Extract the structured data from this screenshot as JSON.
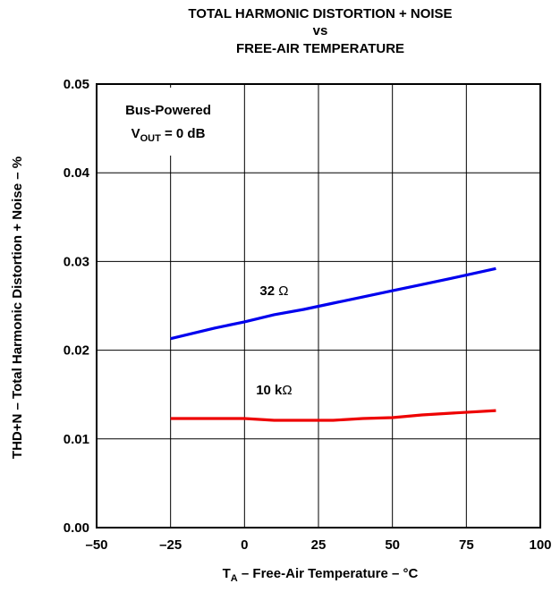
{
  "chart_data": {
    "type": "line",
    "title_lines": [
      "TOTAL HARMONIC DISTORTION + NOISE",
      "vs",
      "FREE-AIR TEMPERATURE"
    ],
    "xlabel": {
      "main": "T",
      "sub": "A",
      "rest": " – Free-Air Temperature – °C"
    },
    "ylabel": "THD+N – Total Harmonic Distortion + Noise – %",
    "xlim": [
      -50,
      100
    ],
    "ylim": [
      0.0,
      0.05
    ],
    "x_ticks": [
      -50,
      -25,
      0,
      25,
      50,
      75,
      100
    ],
    "x_tick_labels": [
      "–50",
      "–25",
      "0",
      "25",
      "50",
      "75",
      "100"
    ],
    "y_ticks": [
      0.0,
      0.01,
      0.02,
      0.03,
      0.04,
      0.05
    ],
    "y_tick_labels": [
      "0.00",
      "0.01",
      "0.02",
      "0.03",
      "0.04",
      "0.05"
    ],
    "grid": true,
    "annotation_box": {
      "line1": "Bus-Powered",
      "line2_main": "V",
      "line2_sub": "OUT",
      "line2_rest": " = 0 dB"
    },
    "series": [
      {
        "name": "32 Ω",
        "color": "#0000ee",
        "x": [
          -25,
          -10,
          0,
          10,
          20,
          30,
          40,
          50,
          60,
          70,
          85
        ],
        "y": [
          0.0213,
          0.0225,
          0.0232,
          0.024,
          0.0246,
          0.0253,
          0.026,
          0.0267,
          0.0274,
          0.0281,
          0.0292
        ]
      },
      {
        "name": "10 kΩ",
        "color": "#ee0000",
        "x": [
          -25,
          -10,
          0,
          10,
          20,
          30,
          40,
          50,
          60,
          70,
          85
        ],
        "y": [
          0.0123,
          0.0123,
          0.0123,
          0.0121,
          0.0121,
          0.0121,
          0.0123,
          0.0124,
          0.0127,
          0.0129,
          0.0132
        ]
      }
    ],
    "series_labels": [
      {
        "series": 0,
        "text_main": "32 ",
        "text_sym": "Ω",
        "at_x": 10,
        "at_y": 0.0262
      },
      {
        "series": 1,
        "text_main": "10 k",
        "text_sym": "Ω",
        "at_x": 10,
        "at_y": 0.015
      }
    ]
  }
}
